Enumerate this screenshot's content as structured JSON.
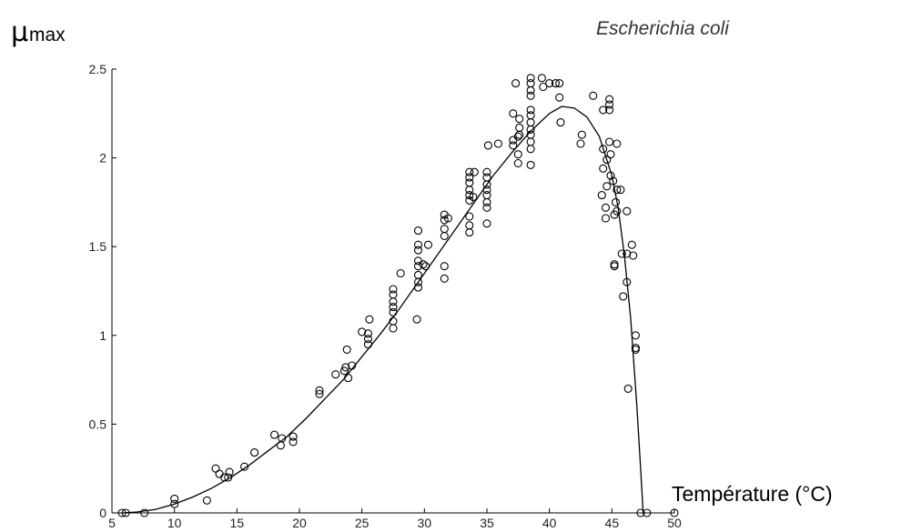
{
  "chart_data": {
    "type": "scatter",
    "title": "Escherichia coli",
    "ylabel_main": "μ",
    "ylabel_sub": "max",
    "xlabel": "Température (°C)",
    "xlim": [
      5,
      50
    ],
    "ylim": [
      0,
      2.5
    ],
    "xticks": [
      "5",
      "10",
      "15",
      "20",
      "25",
      "30",
      "35",
      "40",
      "45",
      "50"
    ],
    "yticks": [
      "0",
      "0.5",
      "1",
      "1.5",
      "2",
      "2.5"
    ],
    "grid": false,
    "fit_curve": [
      [
        5.8,
        0
      ],
      [
        7,
        0.005
      ],
      [
        8.5,
        0.02
      ],
      [
        10,
        0.05
      ],
      [
        11.5,
        0.09
      ],
      [
        13,
        0.14
      ],
      [
        14.5,
        0.2
      ],
      [
        16,
        0.27
      ],
      [
        17.5,
        0.35
      ],
      [
        19,
        0.43
      ],
      [
        20.5,
        0.53
      ],
      [
        22,
        0.64
      ],
      [
        23.5,
        0.75
      ],
      [
        25,
        0.88
      ],
      [
        26.5,
        1.01
      ],
      [
        28,
        1.15
      ],
      [
        29.5,
        1.3
      ],
      [
        31,
        1.45
      ],
      [
        32.5,
        1.6
      ],
      [
        34,
        1.75
      ],
      [
        35.5,
        1.9
      ],
      [
        37,
        2.03
      ],
      [
        38.5,
        2.15
      ],
      [
        40,
        2.25
      ],
      [
        41,
        2.29
      ],
      [
        42,
        2.28
      ],
      [
        43,
        2.23
      ],
      [
        44,
        2.12
      ],
      [
        45,
        1.9
      ],
      [
        45.5,
        1.72
      ],
      [
        46,
        1.45
      ],
      [
        46.5,
        1.1
      ],
      [
        47,
        0.6
      ],
      [
        47.3,
        0.25
      ],
      [
        47.5,
        0
      ]
    ],
    "points": [
      [
        5.8,
        0
      ],
      [
        6.1,
        0
      ],
      [
        7.6,
        0
      ],
      [
        10,
        0.05
      ],
      [
        10,
        0.08
      ],
      [
        12.6,
        0.07
      ],
      [
        13.3,
        0.25
      ],
      [
        13.6,
        0.22
      ],
      [
        14,
        0.2
      ],
      [
        14.3,
        0.2
      ],
      [
        14.4,
        0.23
      ],
      [
        15.6,
        0.26
      ],
      [
        16.4,
        0.34
      ],
      [
        18,
        0.44
      ],
      [
        18.5,
        0.38
      ],
      [
        18.6,
        0.42
      ],
      [
        19.5,
        0.4
      ],
      [
        19.5,
        0.43
      ],
      [
        21.6,
        0.67
      ],
      [
        21.6,
        0.69
      ],
      [
        22.9,
        0.78
      ],
      [
        23.6,
        0.8
      ],
      [
        23.7,
        0.82
      ],
      [
        23.8,
        0.92
      ],
      [
        23.9,
        0.76
      ],
      [
        24.2,
        0.83
      ],
      [
        25,
        1.02
      ],
      [
        25.5,
        0.95
      ],
      [
        25.5,
        0.98
      ],
      [
        25.5,
        1.01
      ],
      [
        25.6,
        1.09
      ],
      [
        27.5,
        1.04
      ],
      [
        27.5,
        1.08
      ],
      [
        27.5,
        1.13
      ],
      [
        27.5,
        1.16
      ],
      [
        27.5,
        1.19
      ],
      [
        27.5,
        1.23
      ],
      [
        27.5,
        1.26
      ],
      [
        28.1,
        1.35
      ],
      [
        29.4,
        1.09
      ],
      [
        29.5,
        1.27
      ],
      [
        29.5,
        1.3
      ],
      [
        29.5,
        1.34
      ],
      [
        29.5,
        1.39
      ],
      [
        29.5,
        1.42
      ],
      [
        29.5,
        1.48
      ],
      [
        29.5,
        1.51
      ],
      [
        29.5,
        1.59
      ],
      [
        29.9,
        1.4
      ],
      [
        30.1,
        1.39
      ],
      [
        30.3,
        1.51
      ],
      [
        31.6,
        1.32
      ],
      [
        31.6,
        1.39
      ],
      [
        31.6,
        1.56
      ],
      [
        31.6,
        1.6
      ],
      [
        31.6,
        1.65
      ],
      [
        31.6,
        1.68
      ],
      [
        31.9,
        1.66
      ],
      [
        33.6,
        1.58
      ],
      [
        33.6,
        1.62
      ],
      [
        33.6,
        1.67
      ],
      [
        33.6,
        1.76
      ],
      [
        33.6,
        1.79
      ],
      [
        33.6,
        1.82
      ],
      [
        33.6,
        1.86
      ],
      [
        33.6,
        1.89
      ],
      [
        33.6,
        1.92
      ],
      [
        33.9,
        1.78
      ],
      [
        34,
        1.92
      ],
      [
        35,
        1.63
      ],
      [
        35,
        1.72
      ],
      [
        35,
        1.75
      ],
      [
        35,
        1.79
      ],
      [
        35,
        1.82
      ],
      [
        35,
        1.85
      ],
      [
        35,
        1.89
      ],
      [
        35,
        1.92
      ],
      [
        35.1,
        2.07
      ],
      [
        35.9,
        2.08
      ],
      [
        37.1,
        2.07
      ],
      [
        37.1,
        2.1
      ],
      [
        37.1,
        2.25
      ],
      [
        37.3,
        2.42
      ],
      [
        37.5,
        2.02
      ],
      [
        37.5,
        1.97
      ],
      [
        37.5,
        2.12
      ],
      [
        37.6,
        2.22
      ],
      [
        37.6,
        2.17
      ],
      [
        37.6,
        2.13
      ],
      [
        38.5,
        1.96
      ],
      [
        38.5,
        2.05
      ],
      [
        38.5,
        2.09
      ],
      [
        38.5,
        2.13
      ],
      [
        38.5,
        2.16
      ],
      [
        38.5,
        2.2
      ],
      [
        38.5,
        2.24
      ],
      [
        38.5,
        2.27
      ],
      [
        38.5,
        2.35
      ],
      [
        38.5,
        2.38
      ],
      [
        38.5,
        2.42
      ],
      [
        38.5,
        2.45
      ],
      [
        39.4,
        2.45
      ],
      [
        39.5,
        2.4
      ],
      [
        40,
        2.42
      ],
      [
        40.5,
        2.42
      ],
      [
        40.8,
        2.42
      ],
      [
        40.8,
        2.34
      ],
      [
        40.9,
        2.2
      ],
      [
        42.5,
        2.08
      ],
      [
        42.6,
        2.13
      ],
      [
        43.5,
        2.35
      ],
      [
        44.2,
        1.79
      ],
      [
        44.3,
        1.94
      ],
      [
        44.3,
        2.05
      ],
      [
        44.3,
        2.27
      ],
      [
        44.5,
        1.66
      ],
      [
        44.5,
        1.72
      ],
      [
        44.6,
        1.84
      ],
      [
        44.6,
        1.99
      ],
      [
        44.8,
        2.3
      ],
      [
        44.8,
        2.33
      ],
      [
        44.8,
        2.27
      ],
      [
        44.8,
        2.09
      ],
      [
        44.9,
        2.02
      ],
      [
        44.9,
        1.9
      ],
      [
        45.1,
        1.87
      ],
      [
        45.2,
        1.68
      ],
      [
        45.2,
        1.39
      ],
      [
        45.2,
        1.4
      ],
      [
        45.3,
        1.75
      ],
      [
        45.4,
        1.82
      ],
      [
        45.4,
        1.7
      ],
      [
        45.4,
        2.08
      ],
      [
        45.7,
        1.82
      ],
      [
        45.8,
        1.46
      ],
      [
        45.9,
        1.22
      ],
      [
        46.2,
        1.7
      ],
      [
        46.2,
        1.46
      ],
      [
        46.2,
        1.3
      ],
      [
        46.3,
        0.7
      ],
      [
        46.6,
        1.51
      ],
      [
        46.7,
        1.45
      ],
      [
        46.9,
        1.0
      ],
      [
        46.9,
        0.93
      ],
      [
        46.9,
        0.92
      ],
      [
        47.3,
        0
      ],
      [
        47.8,
        0
      ],
      [
        50,
        0
      ]
    ]
  }
}
